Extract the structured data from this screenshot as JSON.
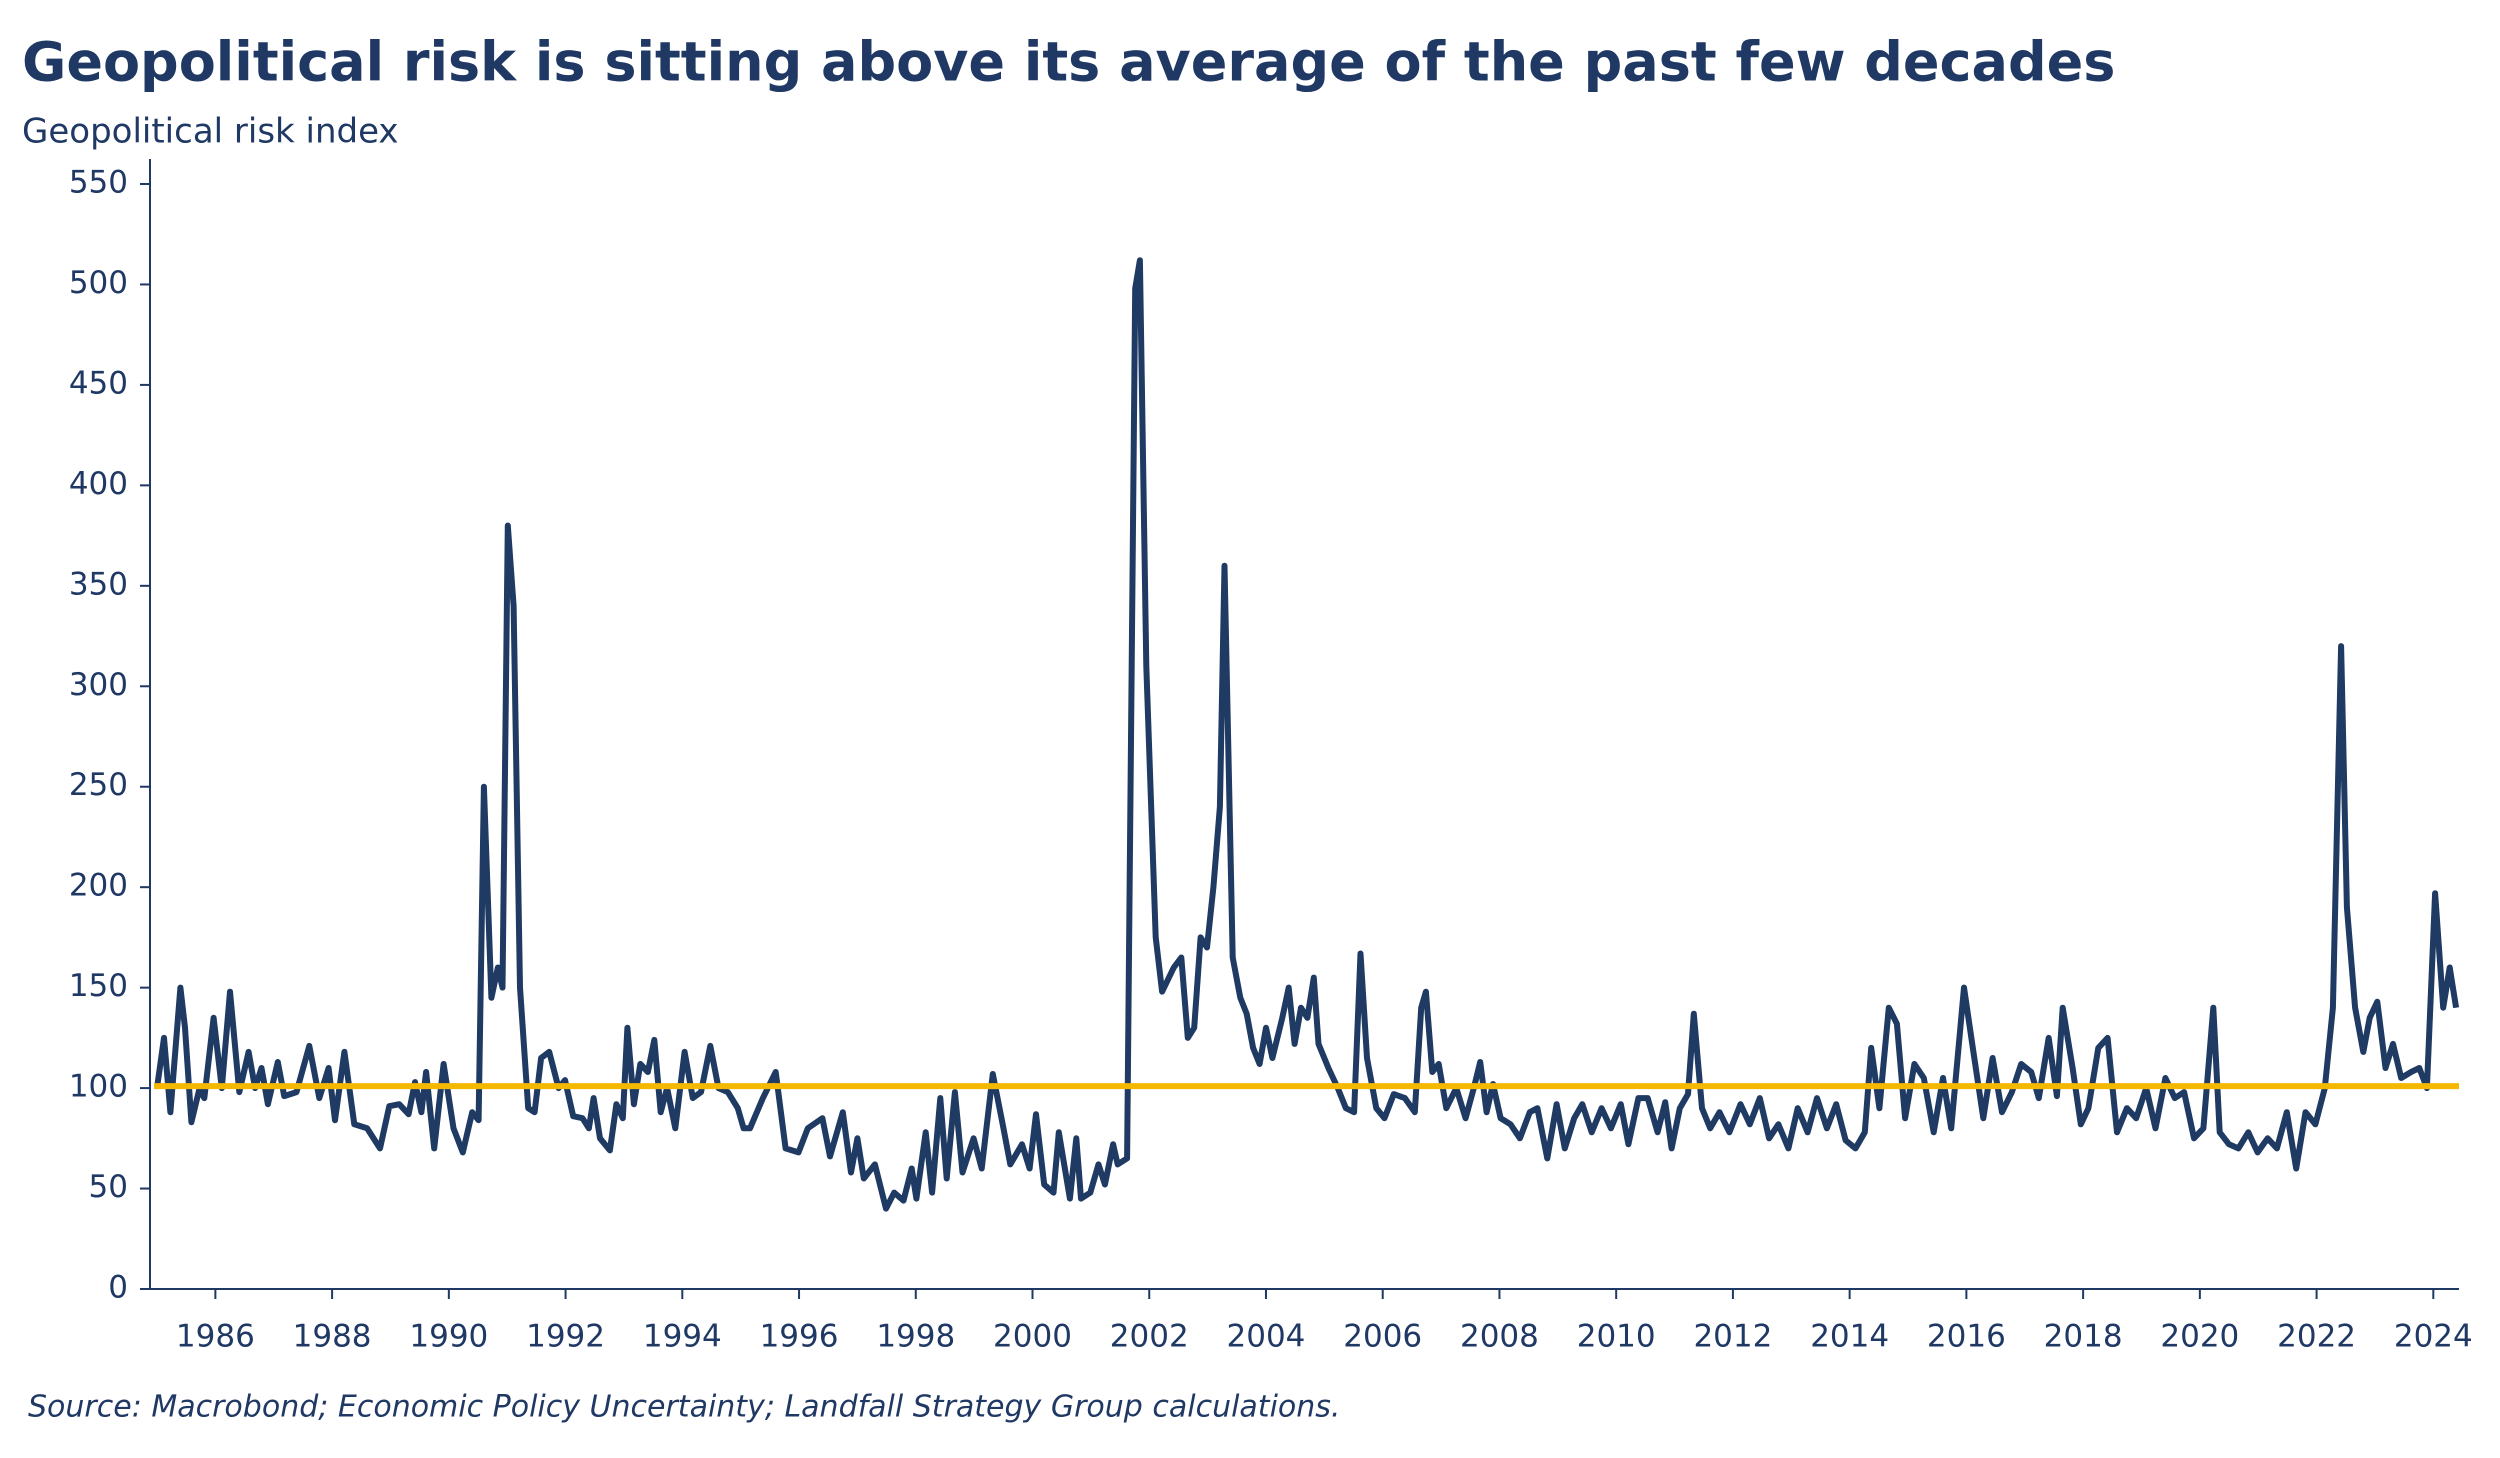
{
  "chart_data": {
    "type": "line",
    "title": "Geopolitical risk is sitting above its average of the past few decades",
    "subtitle": "Geopolitical risk index",
    "source": "Source: Macrobond; Economic Policy Uncertainty; Landfall Strategy Group calculations.",
    "color": "#1f3a63",
    "average_line": {
      "value": 101,
      "color": "#f5b800"
    },
    "xlim": [
      1984.88,
      2024.44
    ],
    "xticks": [
      1986,
      1988,
      1990,
      1992,
      1994,
      1996,
      1998,
      2000,
      2002,
      2004,
      2006,
      2008,
      2010,
      2012,
      2014,
      2016,
      2018,
      2020,
      2022,
      2024
    ],
    "ylim": [
      0,
      550
    ],
    "yticks": [
      0,
      50,
      100,
      150,
      200,
      250,
      300,
      350,
      400,
      450,
      500,
      550
    ],
    "x": [
      1985.0,
      1985.12,
      1985.23,
      1985.4,
      1985.48,
      1985.59,
      1985.73,
      1985.81,
      1985.97,
      1986.11,
      1986.25,
      1986.41,
      1986.57,
      1986.68,
      1986.79,
      1986.9,
      1987.07,
      1987.18,
      1987.39,
      1987.61,
      1987.78,
      1987.94,
      1988.05,
      1988.21,
      1988.38,
      1988.6,
      1988.82,
      1988.98,
      1989.15,
      1989.31,
      1989.42,
      1989.53,
      1989.61,
      1989.75,
      1989.91,
      1990.08,
      1990.24,
      1990.4,
      1990.51,
      1990.6,
      1990.73,
      1990.84,
      1990.92,
      1991.01,
      1991.11,
      1991.22,
      1991.36,
      1991.47,
      1991.58,
      1991.72,
      1991.88,
      1991.99,
      1992.13,
      1992.29,
      1992.4,
      1992.48,
      1992.59,
      1992.76,
      1992.87,
      1992.98,
      1993.06,
      1993.17,
      1993.28,
      1993.41,
      1993.52,
      1993.63,
      1993.74,
      1993.88,
      1994.04,
      1994.18,
      1994.32,
      1994.48,
      1994.62,
      1994.78,
      1994.95,
      1995.05,
      1995.16,
      1995.38,
      1995.6,
      1995.77,
      1995.99,
      1996.15,
      1996.4,
      1996.53,
      1996.75,
      1996.89,
      1997.0,
      1997.11,
      1997.3,
      1997.49,
      1997.63,
      1997.79,
      1997.93,
      1998.01,
      1998.17,
      1998.28,
      1998.42,
      1998.53,
      1998.67,
      1998.8,
      1998.99,
      1999.13,
      1999.32,
      1999.49,
      1999.62,
      1999.82,
      1999.95,
      2000.06,
      2000.2,
      2000.36,
      2000.45,
      2000.64,
      2000.75,
      2000.83,
      2000.99,
      2001.13,
      2001.24,
      2001.38,
      2001.46,
      2001.62,
      2001.76,
      2001.84,
      2001.95,
      2002.11,
      2002.22,
      2002.42,
      2002.55,
      2002.66,
      2002.77,
      2002.88,
      2002.99,
      2003.1,
      2003.21,
      2003.29,
      2003.43,
      2003.56,
      2003.67,
      2003.78,
      2003.89,
      2004.0,
      2004.11,
      2004.28,
      2004.39,
      2004.49,
      2004.6,
      2004.71,
      2004.82,
      2004.9,
      2005.07,
      2005.23,
      2005.37,
      2005.51,
      2005.62,
      2005.73,
      2005.89,
      2006.03,
      2006.19,
      2006.38,
      2006.55,
      2006.66,
      2006.74,
      2006.85,
      2006.96,
      2007.09,
      2007.26,
      2007.42,
      2007.56,
      2007.67,
      2007.78,
      2007.89,
      2008.02,
      2008.19,
      2008.35,
      2008.52,
      2008.65,
      2008.82,
      2008.98,
      2009.12,
      2009.28,
      2009.42,
      2009.58,
      2009.75,
      2009.91,
      2010.08,
      2010.21,
      2010.38,
      2010.54,
      2010.71,
      2010.84,
      2010.95,
      2011.09,
      2011.23,
      2011.33,
      2011.47,
      2011.61,
      2011.77,
      2011.94,
      2012.13,
      2012.29,
      2012.46,
      2012.62,
      2012.78,
      2012.95,
      2013.11,
      2013.28,
      2013.44,
      2013.61,
      2013.77,
      2013.93,
      2014.1,
      2014.26,
      2014.37,
      2014.51,
      2014.67,
      2014.81,
      2014.95,
      2015.11,
      2015.27,
      2015.44,
      2015.6,
      2015.74,
      2015.96,
      2016.12,
      2016.29,
      2016.45,
      2016.61,
      2016.78,
      2016.94,
      2017.11,
      2017.24,
      2017.41,
      2017.55,
      2017.65,
      2017.82,
      2017.96,
      2018.09,
      2018.26,
      2018.42,
      2018.58,
      2018.75,
      2018.91,
      2019.08,
      2019.24,
      2019.41,
      2019.57,
      2019.73,
      2019.9,
      2020.06,
      2020.23,
      2020.34,
      2020.5,
      2020.66,
      2020.83,
      2020.99,
      2021.16,
      2021.32,
      2021.49,
      2021.65,
      2021.81,
      2021.98,
      2022.14,
      2022.28,
      2022.42,
      2022.52,
      2022.66,
      2022.8,
      2022.91,
      2023.04,
      2023.18,
      2023.31,
      2023.45,
      2023.62,
      2023.76,
      2023.89,
      2024.03,
      2024.17,
      2024.28,
      2024.39
    ],
    "values": [
      100,
      125,
      88,
      150,
      130,
      83,
      100,
      95,
      135,
      100,
      148,
      98,
      118,
      100,
      110,
      92,
      113,
      96,
      98,
      121,
      95,
      110,
      84,
      118,
      82,
      80,
      70,
      91,
      92,
      87,
      103,
      88,
      108,
      70,
      112,
      80,
      68,
      88,
      84,
      250,
      145,
      160,
      150,
      380,
      340,
      150,
      90,
      88,
      115,
      118,
      100,
      104,
      86,
      85,
      80,
      95,
      75,
      69,
      92,
      85,
      130,
      92,
      112,
      108,
      124,
      88,
      100,
      80,
      118,
      95,
      98,
      121,
      100,
      98,
      90,
      80,
      80,
      95,
      108,
      70,
      68,
      80,
      85,
      66,
      88,
      58,
      75,
      55,
      62,
      40,
      48,
      44,
      60,
      45,
      78,
      48,
      95,
      55,
      98,
      58,
      75,
      60,
      107,
      82,
      62,
      72,
      60,
      87,
      52,
      48,
      78,
      45,
      75,
      45,
      48,
      62,
      52,
      72,
      62,
      65,
      498,
      512,
      310,
      175,
      148,
      160,
      165,
      125,
      130,
      175,
      170,
      200,
      240,
      360,
      165,
      145,
      137,
      120,
      112,
      130,
      115,
      135,
      150,
      122,
      140,
      135,
      155,
      122,
      110,
      100,
      90,
      88,
      167,
      115,
      90,
      85,
      97,
      95,
      88,
      140,
      148,
      108,
      112,
      90,
      100,
      85,
      100,
      113,
      88,
      102,
      85,
      82,
      75,
      88,
      90,
      65,
      92,
      70,
      85,
      92,
      78,
      90,
      80,
      92,
      72,
      95,
      95,
      78,
      93,
      70,
      90,
      97,
      137,
      90,
      80,
      88,
      78,
      92,
      82,
      95,
      75,
      82,
      70,
      90,
      78,
      95,
      80,
      92,
      74,
      70,
      78,
      120,
      90,
      140,
      132,
      85,
      112,
      105,
      78,
      105,
      80,
      150,
      118,
      85,
      115,
      88,
      98,
      112,
      108,
      95,
      125,
      96,
      140,
      110,
      82,
      90,
      120,
      125,
      78,
      90,
      85,
      100,
      80,
      105,
      95,
      98,
      75,
      80,
      140,
      78,
      72,
      70,
      78,
      68,
      75,
      70,
      88,
      60,
      88,
      82,
      100,
      140,
      320,
      190,
      140,
      118,
      135,
      143,
      110,
      122,
      105,
      108,
      110,
      100,
      197,
      140,
      160,
      140
    ]
  }
}
